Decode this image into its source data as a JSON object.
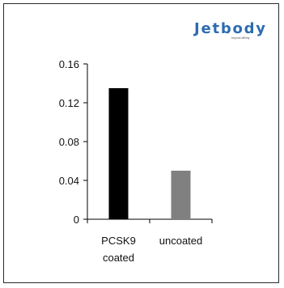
{
  "logo": {
    "text": "Jetbody",
    "tagline": "beyond affinity",
    "color": "#2b6cb0",
    "accent_color": "#7cc242"
  },
  "chart_data": {
    "type": "bar",
    "categories": [
      "PCSK9 coated",
      "uncoated"
    ],
    "category_lines": [
      [
        "PCSK9",
        "coated"
      ],
      [
        "uncoated"
      ]
    ],
    "values": [
      0.135,
      0.05
    ],
    "bar_colors": [
      "#000000",
      "#808080"
    ],
    "ylim": [
      0,
      0.16
    ],
    "yticks": [
      "0",
      "0.04",
      "0.08",
      "0.12",
      "0.16"
    ],
    "title": "",
    "xlabel": "",
    "ylabel": "",
    "grid": false,
    "legend": "none"
  }
}
